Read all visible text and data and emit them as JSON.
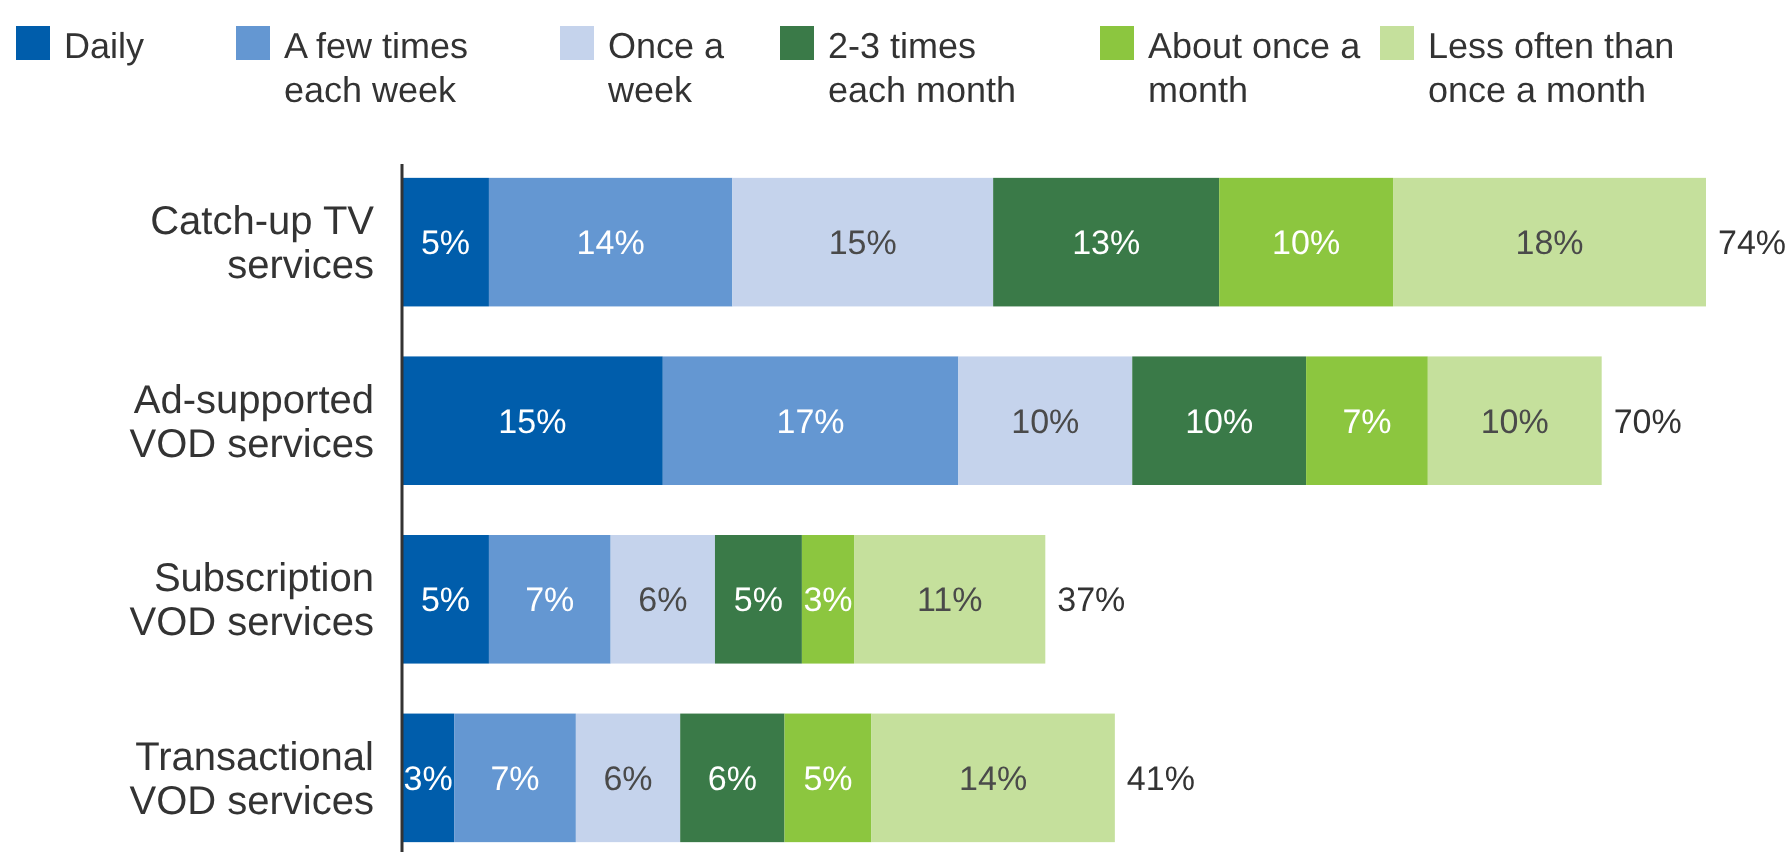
{
  "chart_data": {
    "type": "bar",
    "orientation": "horizontal",
    "stacked": true,
    "legend": "top",
    "categories": [
      "Catch-up TV services",
      "Ad-supported VOD services",
      "Subscription VOD services",
      "Transactional VOD services"
    ],
    "series": [
      {
        "name": "Daily",
        "color": "#005dab",
        "values": [
          5,
          15,
          5,
          3
        ],
        "value_labels": [
          "5%",
          "15%",
          "5%",
          "3%"
        ]
      },
      {
        "name": "A few times each week",
        "color": "#6497d2",
        "values": [
          14,
          17,
          7,
          7
        ],
        "value_labels": [
          "14%",
          "17%",
          "7%",
          "7%"
        ]
      },
      {
        "name": "Once a week",
        "color": "#c5d3ec",
        "values": [
          15,
          10,
          6,
          6
        ],
        "value_labels": [
          "15%",
          "10%",
          "6%",
          "6%"
        ]
      },
      {
        "name": "2-3 times each month",
        "color": "#3a7a48",
        "values": [
          13,
          10,
          5,
          6
        ],
        "value_labels": [
          "13%",
          "10%",
          "5%",
          "6%"
        ]
      },
      {
        "name": "About once a month",
        "color": "#8cc63f",
        "values": [
          10,
          7,
          3,
          5
        ],
        "value_labels": [
          "10%",
          "7%",
          "3%",
          "5%"
        ]
      },
      {
        "name": "Less often than once a month",
        "color": "#c5e09c",
        "values": [
          18,
          10,
          11,
          14
        ],
        "value_labels": [
          "18%",
          "10%",
          "11%",
          "14%"
        ]
      }
    ],
    "totals": [
      "74%",
      "70%",
      "37%",
      "41%"
    ]
  }
}
